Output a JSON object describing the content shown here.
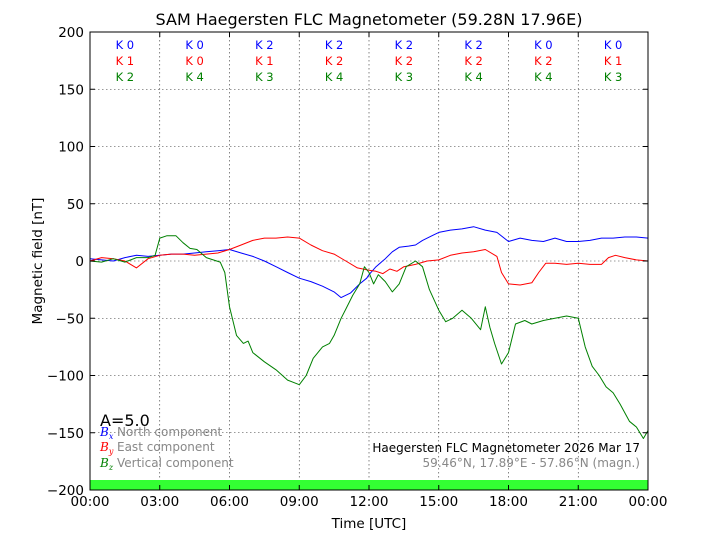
{
  "chart_data": {
    "type": "line",
    "title": "SAM Haegersten FLC Magnetometer (59.28N 17.96E)",
    "xlabel": "Time [UTC]",
    "ylabel": "Magnetic field [nT]",
    "xlim": [
      0,
      24
    ],
    "ylim": [
      -200,
      200
    ],
    "x_tick_values": [
      0,
      3,
      6,
      9,
      12,
      15,
      18,
      21,
      24
    ],
    "x_tick_labels": [
      "00:00",
      "03:00",
      "06:00",
      "09:00",
      "12:00",
      "15:00",
      "18:00",
      "21:00",
      "00:00"
    ],
    "y_tick_values": [
      200,
      150,
      100,
      50,
      0,
      -50,
      -100,
      -150,
      -200
    ],
    "grid": true,
    "k_indices": {
      "rows": [
        {
          "color": "#0000ff",
          "labels": [
            "K 0",
            "K 0",
            "K 2",
            "K 2",
            "K 2",
            "K 2",
            "K 0",
            "K 0"
          ]
        },
        {
          "color": "#ff0000",
          "labels": [
            "K 1",
            "K 0",
            "K 1",
            "K 2",
            "K 2",
            "K 2",
            "K 2",
            "K 1"
          ]
        },
        {
          "color": "#008000",
          "labels": [
            "K 2",
            "K 4",
            "K 3",
            "K 4",
            "K 3",
            "K 4",
            "K 4",
            "K 3"
          ]
        }
      ]
    },
    "a_index": "A=5.0",
    "activity_bar_color": "#33ff33",
    "legend": [
      {
        "symbol": "B",
        "sub": "x",
        "label": "North component",
        "color": "#0000ff"
      },
      {
        "symbol": "B",
        "sub": "y",
        "label": "East component",
        "color": "#ff0000"
      },
      {
        "symbol": "B",
        "sub": "z",
        "label": "Vertical component",
        "color": "#008000"
      }
    ],
    "info_line1": "Haegersten FLC Magnetometer 2026 Mar 17",
    "info_line2": "59.46°N, 17.89°E - 57.86°N (magn.)",
    "series": [
      {
        "id": "bx",
        "color": "#0000ff",
        "points": [
          [
            0,
            2
          ],
          [
            0.5,
            1
          ],
          [
            1,
            0
          ],
          [
            1.5,
            3
          ],
          [
            2,
            5
          ],
          [
            2.5,
            4
          ],
          [
            3,
            5
          ],
          [
            3.5,
            6
          ],
          [
            4,
            6
          ],
          [
            4.5,
            7
          ],
          [
            5,
            8
          ],
          [
            5.5,
            9
          ],
          [
            6,
            10
          ],
          [
            6.5,
            7
          ],
          [
            7,
            4
          ],
          [
            7.5,
            0
          ],
          [
            8,
            -5
          ],
          [
            8.5,
            -10
          ],
          [
            9,
            -15
          ],
          [
            9.5,
            -18
          ],
          [
            10,
            -22
          ],
          [
            10.5,
            -27
          ],
          [
            10.8,
            -32
          ],
          [
            11.2,
            -28
          ],
          [
            11.6,
            -20
          ],
          [
            11.9,
            -15
          ],
          [
            12,
            -12
          ],
          [
            12.3,
            -5
          ],
          [
            12.7,
            2
          ],
          [
            13,
            8
          ],
          [
            13.3,
            12
          ],
          [
            13.7,
            13
          ],
          [
            14,
            14
          ],
          [
            14.3,
            18
          ],
          [
            14.7,
            22
          ],
          [
            15,
            25
          ],
          [
            15.5,
            27
          ],
          [
            16,
            28
          ],
          [
            16.5,
            30
          ],
          [
            17,
            27
          ],
          [
            17.5,
            25
          ],
          [
            18,
            17
          ],
          [
            18.5,
            20
          ],
          [
            19,
            18
          ],
          [
            19.5,
            17
          ],
          [
            20,
            20
          ],
          [
            20.5,
            17
          ],
          [
            21,
            17
          ],
          [
            21.5,
            18
          ],
          [
            22,
            20
          ],
          [
            22.5,
            20
          ],
          [
            23,
            21
          ],
          [
            23.5,
            21
          ],
          [
            24,
            20
          ]
        ]
      },
      {
        "id": "by",
        "color": "#ff0000",
        "points": [
          [
            0,
            0
          ],
          [
            0.5,
            3
          ],
          [
            1,
            2
          ],
          [
            1.5,
            0
          ],
          [
            2,
            -6
          ],
          [
            2.5,
            2
          ],
          [
            3,
            5
          ],
          [
            3.5,
            6
          ],
          [
            4,
            6
          ],
          [
            4.5,
            5
          ],
          [
            5,
            6
          ],
          [
            5.5,
            7
          ],
          [
            6,
            10
          ],
          [
            6.5,
            14
          ],
          [
            7,
            18
          ],
          [
            7.5,
            20
          ],
          [
            8,
            20
          ],
          [
            8.5,
            21
          ],
          [
            9,
            20
          ],
          [
            9.5,
            14
          ],
          [
            10,
            9
          ],
          [
            10.5,
            6
          ],
          [
            11,
            0
          ],
          [
            11.5,
            -6
          ],
          [
            12,
            -8
          ],
          [
            12.3,
            -9
          ],
          [
            12.6,
            -11
          ],
          [
            12.9,
            -7
          ],
          [
            13.2,
            -9
          ],
          [
            13.5,
            -5
          ],
          [
            14,
            -3
          ],
          [
            14.5,
            0
          ],
          [
            15,
            1
          ],
          [
            15.5,
            5
          ],
          [
            16,
            7
          ],
          [
            16.5,
            8
          ],
          [
            17,
            10
          ],
          [
            17.5,
            4
          ],
          [
            17.7,
            -10
          ],
          [
            18,
            -20
          ],
          [
            18.5,
            -21
          ],
          [
            19,
            -19
          ],
          [
            19.3,
            -10
          ],
          [
            19.6,
            -2
          ],
          [
            20,
            -2
          ],
          [
            20.5,
            -3
          ],
          [
            21,
            -2
          ],
          [
            21.5,
            -3
          ],
          [
            22,
            -3
          ],
          [
            22.3,
            3
          ],
          [
            22.6,
            5
          ],
          [
            23,
            3
          ],
          [
            23.5,
            1
          ],
          [
            24,
            0
          ]
        ]
      },
      {
        "id": "bz",
        "color": "#008000",
        "points": [
          [
            0,
            0
          ],
          [
            0.5,
            -1
          ],
          [
            1,
            2
          ],
          [
            1.5,
            -1
          ],
          [
            2,
            3
          ],
          [
            2.5,
            3
          ],
          [
            2.8,
            5
          ],
          [
            3,
            20
          ],
          [
            3.3,
            22
          ],
          [
            3.7,
            22
          ],
          [
            4,
            16
          ],
          [
            4.3,
            11
          ],
          [
            4.6,
            10
          ],
          [
            5,
            3
          ],
          [
            5.3,
            1
          ],
          [
            5.6,
            -1
          ],
          [
            5.8,
            -10
          ],
          [
            6,
            -40
          ],
          [
            6.3,
            -65
          ],
          [
            6.6,
            -72
          ],
          [
            6.8,
            -70
          ],
          [
            7,
            -80
          ],
          [
            7.5,
            -88
          ],
          [
            8,
            -95
          ],
          [
            8.5,
            -104
          ],
          [
            9,
            -108
          ],
          [
            9.3,
            -100
          ],
          [
            9.6,
            -85
          ],
          [
            10,
            -75
          ],
          [
            10.3,
            -72
          ],
          [
            10.5,
            -65
          ],
          [
            10.8,
            -50
          ],
          [
            11,
            -42
          ],
          [
            11.3,
            -30
          ],
          [
            11.6,
            -20
          ],
          [
            11.8,
            -5
          ],
          [
            12,
            -10
          ],
          [
            12.2,
            -20
          ],
          [
            12.4,
            -12
          ],
          [
            12.7,
            -18
          ],
          [
            13,
            -27
          ],
          [
            13.3,
            -20
          ],
          [
            13.6,
            -5
          ],
          [
            14,
            0
          ],
          [
            14.3,
            -5
          ],
          [
            14.6,
            -25
          ],
          [
            15,
            -43
          ],
          [
            15.3,
            -53
          ],
          [
            15.6,
            -50
          ],
          [
            16,
            -43
          ],
          [
            16.4,
            -50
          ],
          [
            16.8,
            -60
          ],
          [
            17,
            -40
          ],
          [
            17.2,
            -58
          ],
          [
            17.4,
            -72
          ],
          [
            17.7,
            -90
          ],
          [
            18,
            -80
          ],
          [
            18.3,
            -55
          ],
          [
            18.7,
            -52
          ],
          [
            19,
            -55
          ],
          [
            19.5,
            -52
          ],
          [
            20,
            -50
          ],
          [
            20.5,
            -48
          ],
          [
            21,
            -50
          ],
          [
            21.3,
            -75
          ],
          [
            21.6,
            -92
          ],
          [
            21.9,
            -100
          ],
          [
            22.2,
            -110
          ],
          [
            22.5,
            -115
          ],
          [
            22.8,
            -125
          ],
          [
            23.2,
            -140
          ],
          [
            23.5,
            -145
          ],
          [
            23.8,
            -155
          ],
          [
            24,
            -148
          ]
        ]
      }
    ]
  }
}
